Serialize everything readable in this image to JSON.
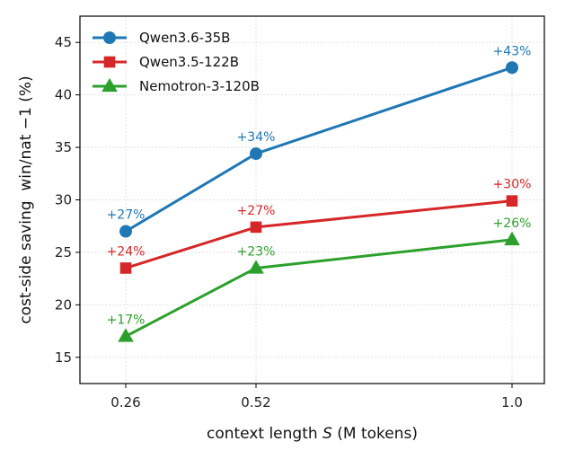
{
  "chart_data": {
    "type": "line",
    "x": [
      0.26,
      0.52,
      1.0
    ],
    "x_tick_labels": [
      "0.26",
      "0.52",
      "1.0"
    ],
    "y_ticks": [
      15,
      20,
      25,
      30,
      35,
      40,
      45
    ],
    "ylim": [
      12.5,
      47.5
    ],
    "xlabel_prefix": "context length ",
    "xlabel_var": "S",
    "xlabel_suffix": " (M tokens)",
    "ylabel": "cost-side saving  win/nat −1 (%)",
    "grid": true,
    "legend_position": "top-left",
    "series": [
      {
        "name": "Qwen3.6-35B",
        "color": "#1f77b4",
        "marker": "circle",
        "values": [
          27.0,
          34.4,
          42.6
        ],
        "labels": [
          "+27%",
          "+34%",
          "+43%"
        ]
      },
      {
        "name": "Qwen3.5-122B",
        "color": "#d62728",
        "marker": "square",
        "values": [
          23.5,
          27.4,
          29.9
        ],
        "labels": [
          "+24%",
          "+27%",
          "+30%"
        ]
      },
      {
        "name": "Nemotron-3-120B",
        "color": "#2ca02c",
        "marker": "triangle",
        "values": [
          17.0,
          23.5,
          26.2
        ],
        "labels": [
          "+17%",
          "+23%",
          "+26%"
        ]
      }
    ]
  }
}
